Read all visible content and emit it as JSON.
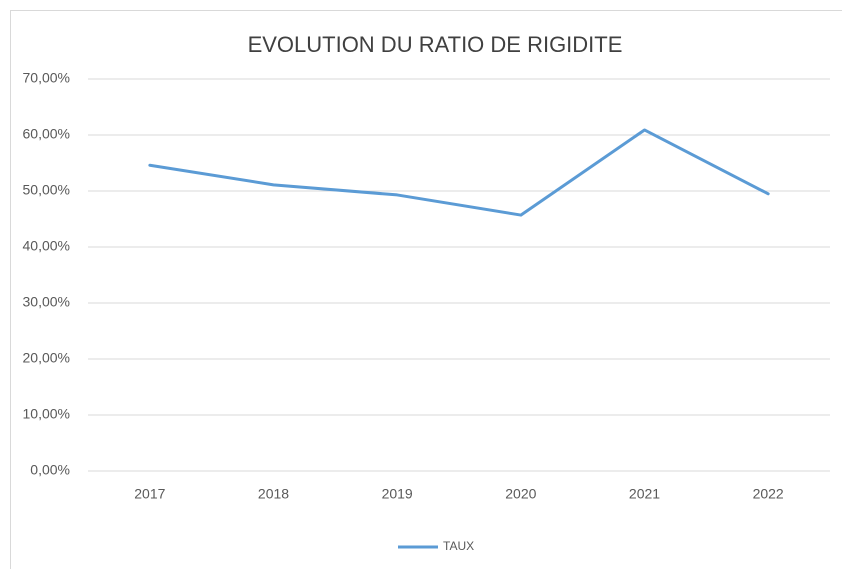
{
  "chart_data": {
    "type": "line",
    "title": "EVOLUTION DU RATIO DE RIGIDITE",
    "categories": [
      "2017",
      "2018",
      "2019",
      "2020",
      "2021",
      "2022"
    ],
    "series": [
      {
        "name": "TAUX",
        "color": "#5b9bd5",
        "values": [
          54.6,
          51.1,
          49.3,
          45.7,
          60.9,
          49.5
        ]
      }
    ],
    "ylim": [
      0,
      70
    ],
    "yticks": [
      {
        "value": 0,
        "label": "0,00%"
      },
      {
        "value": 10,
        "label": "10,00%"
      },
      {
        "value": 20,
        "label": "20,00%"
      },
      {
        "value": 30,
        "label": "30,00%"
      },
      {
        "value": 40,
        "label": "40,00%"
      },
      {
        "value": 50,
        "label": "50,00%"
      },
      {
        "value": 60,
        "label": "60,00%"
      },
      {
        "value": 70,
        "label": "70,00%"
      }
    ],
    "grid": true,
    "legend": "bottom"
  }
}
